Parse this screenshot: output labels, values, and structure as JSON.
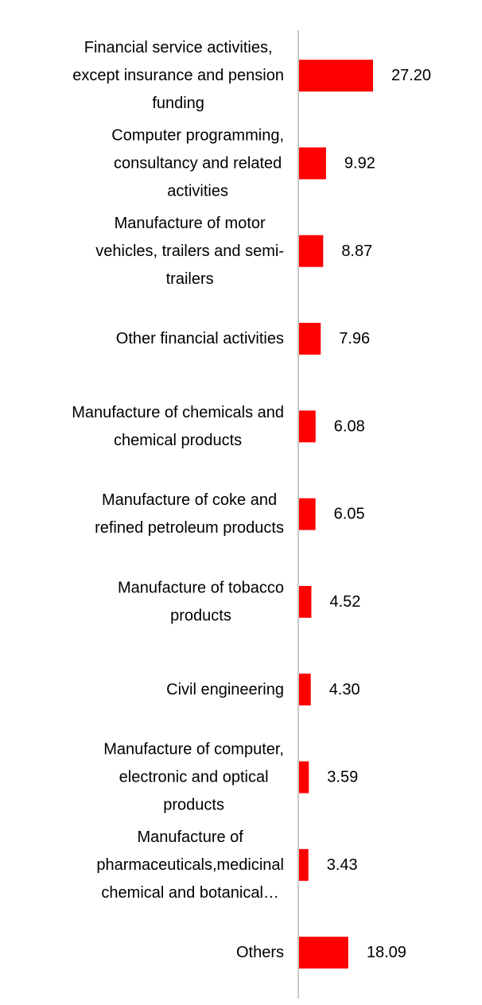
{
  "chart_data": {
    "type": "bar",
    "orientation": "horizontal",
    "categories": [
      [
        "Financial service activities,",
        "except insurance and pension",
        "funding"
      ],
      [
        "Computer programming,",
        "consultancy and related",
        "activities"
      ],
      [
        "Manufacture of motor",
        "vehicles, trailers and semi-",
        "trailers"
      ],
      [
        "Other financial activities"
      ],
      [
        "Manufacture of chemicals and",
        "chemical products"
      ],
      [
        "Manufacture of coke and",
        "refined petroleum products"
      ],
      [
        "Manufacture of tobacco",
        "products"
      ],
      [
        "Civil engineering"
      ],
      [
        "Manufacture of computer,",
        "electronic and optical",
        "products"
      ],
      [
        "Manufacture of",
        "pharmaceuticals,medicinal",
        "chemical and botanical…"
      ],
      [
        "Others"
      ]
    ],
    "values": [
      27.2,
      9.92,
      8.87,
      7.96,
      6.08,
      6.05,
      4.52,
      4.3,
      3.59,
      3.43,
      18.09
    ],
    "value_labels": [
      "27.20",
      "9.92",
      "8.87",
      "7.96",
      "6.08",
      "6.05",
      "4.52",
      "4.30",
      "3.59",
      "3.43",
      "18.09"
    ],
    "bar_color": "#ff0000",
    "axis_color": "#c8c8c8",
    "title": "",
    "xlabel": "",
    "ylabel": "",
    "xlim": [
      0,
      27.2
    ],
    "grid": false,
    "legend": "none"
  }
}
